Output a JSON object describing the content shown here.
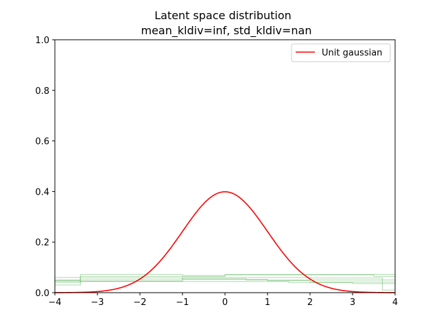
{
  "chart_data": {
    "type": "line",
    "title": "Latent space distribution",
    "subtitle": "mean_kldiv=inf, std_kldiv=nan",
    "xlabel": "",
    "ylabel": "",
    "xlim": [
      -4,
      4
    ],
    "ylim": [
      0,
      1.0
    ],
    "xticks": [
      -4,
      -3,
      -2,
      -1,
      0,
      1,
      2,
      3,
      4
    ],
    "xtick_labels": [
      "−4",
      "−3",
      "−2",
      "−1",
      "0",
      "1",
      "2",
      "3",
      "4"
    ],
    "yticks": [
      0.0,
      0.2,
      0.4,
      0.6,
      0.8,
      1.0
    ],
    "ytick_labels": [
      "0.0",
      "0.2",
      "0.4",
      "0.6",
      "0.8",
      "1.0"
    ],
    "grid": false,
    "legend": {
      "position": "upper right",
      "entries": [
        "Unit gaussian"
      ]
    },
    "colors": {
      "gaussian": "#ff0000",
      "histogram": "#2ca02c"
    },
    "series": [
      {
        "name": "Unit gaussian",
        "kind": "normal_pdf",
        "mean": 0,
        "std": 1
      }
    ],
    "histograms": [
      {
        "edges": [
          -4,
          -3.4,
          -1,
          0,
          4
        ],
        "values": [
          0.06,
          0.072,
          0.068,
          0.072
        ]
      },
      {
        "edges": [
          -4,
          -3.4,
          0,
          3.5,
          4
        ],
        "values": [
          0.048,
          0.064,
          0.07,
          0.064
        ]
      },
      {
        "edges": [
          -4,
          -3.4,
          -1,
          0.5,
          4
        ],
        "values": [
          0.04,
          0.058,
          0.055,
          0.05
        ]
      },
      {
        "edges": [
          -4,
          -1,
          1,
          2,
          4
        ],
        "values": [
          0.045,
          0.052,
          0.047,
          0.042
        ]
      },
      {
        "edges": [
          -4,
          -3.4,
          1.5,
          3,
          4
        ],
        "values": [
          0.03,
          0.044,
          0.04,
          0.036
        ]
      },
      {
        "edges": [
          -4,
          -1,
          2,
          3.7,
          4
        ],
        "values": [
          0.05,
          0.06,
          0.058,
          0.01
        ]
      }
    ]
  }
}
